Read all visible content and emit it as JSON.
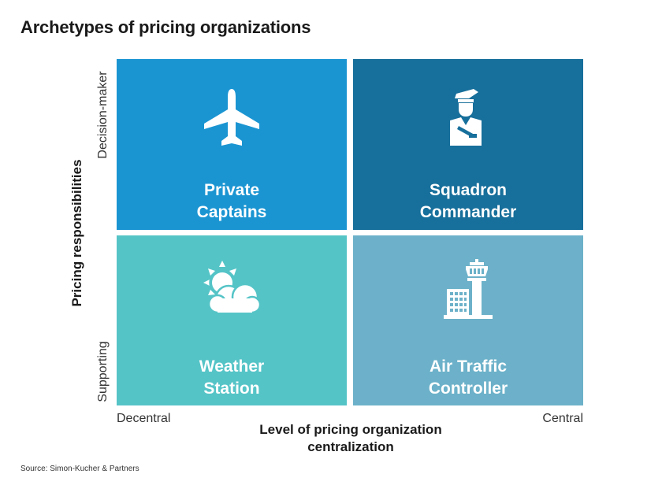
{
  "title": "Archetypes of pricing organizations",
  "y_axis": {
    "title": "Pricing responsibilities",
    "top_label": "Decision-maker",
    "bottom_label": "Supporting"
  },
  "x_axis": {
    "title_line1": "Level of pricing organization",
    "title_line2": "centralization",
    "left_label": "Decentral",
    "right_label": "Central"
  },
  "quadrants": {
    "top_left": {
      "line1": "Private",
      "line2": "Captains",
      "icon": "airplane-icon",
      "color": "#1b95d2"
    },
    "top_right": {
      "line1": "Squadron",
      "line2": "Commander",
      "icon": "pilot-icon",
      "color": "#176f9b"
    },
    "bottom_left": {
      "line1": "Weather",
      "line2": "Station",
      "icon": "sun-cloud-icon",
      "color": "#55c4c7"
    },
    "bottom_right": {
      "line1": "Air Traffic",
      "line2": "Controller",
      "icon": "control-tower-icon",
      "color": "#6cb1c9"
    }
  },
  "source": "Source: Simon-Kucher & Partners"
}
